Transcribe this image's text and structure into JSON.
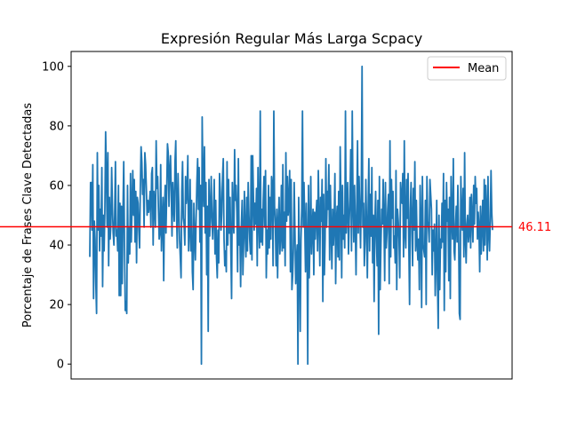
{
  "chart_data": {
    "type": "line",
    "title": "Expresión Regular Más Larga Scpacy",
    "xlabel": "",
    "ylabel": "Porcentaje de Frases Clave Detectadas",
    "ylim": [
      -5,
      105
    ],
    "yticks": [
      0,
      20,
      40,
      60,
      80,
      100
    ],
    "x_ticks_visible": false,
    "grid": false,
    "legend_position": "top-right",
    "legend": [
      "Mean"
    ],
    "series": [
      {
        "color": "#1f77b4",
        "values": [
          36,
          61,
          61,
          45,
          67,
          22,
          48,
          42,
          27,
          17,
          71,
          45,
          60,
          38,
          52,
          43,
          66,
          26,
          50,
          38,
          52,
          78,
          64,
          46,
          71,
          33,
          56,
          42,
          47,
          66,
          53,
          44,
          40,
          50,
          68,
          43,
          45,
          38,
          60,
          23,
          54,
          23,
          53,
          27,
          51,
          68,
          42,
          18,
          21,
          17,
          60,
          34,
          46,
          37,
          64,
          41,
          53,
          65,
          50,
          62,
          41,
          58,
          34,
          56,
          54,
          45,
          39,
          59,
          73,
          68,
          57,
          62,
          46,
          71,
          67,
          59,
          50,
          55,
          51,
          54,
          58,
          46,
          64,
          66,
          40,
          58,
          53,
          46,
          75,
          59,
          63,
          52,
          42,
          44,
          67,
          38,
          48,
          56,
          28,
          52,
          60,
          44,
          58,
          74,
          71,
          53,
          65,
          70,
          58,
          43,
          61,
          53,
          48,
          68,
          75,
          51,
          39,
          64,
          54,
          42,
          36,
          29,
          58,
          68,
          49,
          47,
          40,
          63,
          54,
          58,
          70,
          38,
          45,
          62,
          38,
          55,
          31,
          25,
          54,
          43,
          35,
          49,
          61,
          69,
          52,
          66,
          41,
          60,
          0,
          83,
          62,
          53,
          73,
          44,
          61,
          30,
          53,
          11,
          62,
          43,
          51,
          63,
          48,
          42,
          51,
          62,
          37,
          55,
          36,
          29,
          45,
          34,
          64,
          58,
          45,
          51,
          63,
          69,
          42,
          33,
          38,
          31,
          68,
          40,
          62,
          44,
          56,
          39,
          22,
          61,
          49,
          44,
          72,
          55,
          60,
          51,
          31,
          69,
          40,
          46,
          26,
          47,
          55,
          30,
          41,
          58,
          44,
          36,
          56,
          38,
          61,
          50,
          42,
          37,
          70,
          35,
          70,
          56,
          45,
          54,
          47,
          59,
          33,
          66,
          49,
          39,
          85,
          41,
          52,
          40,
          55,
          63,
          46,
          65,
          29,
          45,
          37,
          60,
          39,
          56,
          42,
          63,
          60,
          33,
          85,
          53,
          47,
          33,
          52,
          29,
          47,
          56,
          37,
          43,
          60,
          38,
          67,
          39,
          51,
          33,
          71,
          48,
          63,
          50,
          54,
          65,
          31,
          62,
          25,
          30,
          39,
          61,
          45,
          27,
          35,
          40,
          0,
          56,
          36,
          11,
          42,
          52,
          85,
          46,
          61,
          47,
          31,
          54,
          42,
          0,
          60,
          29,
          43,
          63,
          37,
          46,
          52,
          30,
          51,
          42,
          50,
          55,
          38,
          65,
          49,
          33,
          56,
          48,
          62,
          21,
          57,
          30,
          42,
          69,
          46,
          58,
          52,
          67,
          35,
          60,
          45,
          32,
          52,
          40,
          47,
          64,
          27,
          48,
          53,
          36,
          58,
          35,
          73,
          54,
          29,
          60,
          42,
          50,
          39,
          85,
          44,
          52,
          61,
          37,
          48,
          56,
          72,
          38,
          85,
          55,
          41,
          60,
          47,
          30,
          52,
          75,
          44,
          63,
          51,
          39,
          58,
          100,
          46,
          54,
          33,
          41,
          62,
          47,
          29,
          51,
          69,
          38,
          57,
          43,
          66,
          34,
          50,
          21,
          48,
          58,
          42,
          33,
          55,
          10,
          63,
          25,
          40,
          52,
          47,
          62,
          49,
          28,
          61,
          39,
          44,
          52,
          57,
          27,
          75,
          36,
          62,
          49,
          58,
          39,
          43,
          34,
          65,
          25,
          52,
          48,
          42,
          29,
          61,
          55,
          54,
          64,
          36,
          75,
          44,
          39,
          62,
          49,
          64,
          40,
          20,
          52,
          61,
          47,
          33,
          59,
          45,
          68,
          38,
          55,
          41,
          35,
          42,
          25,
          60,
          48,
          19,
          63,
          40,
          38,
          36,
          55,
          20,
          63,
          48,
          46,
          41,
          62,
          57,
          52,
          30,
          45,
          38,
          47,
          23,
          35,
          55,
          28,
          12,
          50,
          25,
          42,
          39,
          54,
          41,
          64,
          18,
          55,
          31,
          61,
          48,
          52,
          28,
          56,
          22,
          63,
          49,
          42,
          69,
          38,
          35,
          47,
          53,
          41,
          60,
          44,
          17,
          15,
          63,
          50,
          45,
          59,
          36,
          71,
          42,
          34,
          47,
          50,
          41,
          44,
          56,
          39,
          57,
          49,
          41,
          60,
          47,
          63,
          54,
          59,
          42,
          51,
          46,
          31,
          53,
          37,
          47,
          55,
          38,
          62,
          40,
          60,
          52,
          35,
          63,
          44,
          38,
          48,
          65,
          51,
          45
        ]
      }
    ],
    "mean": {
      "label": "Mean",
      "value": 46.11,
      "value_label": "46.11",
      "color": "#ff0000"
    }
  }
}
